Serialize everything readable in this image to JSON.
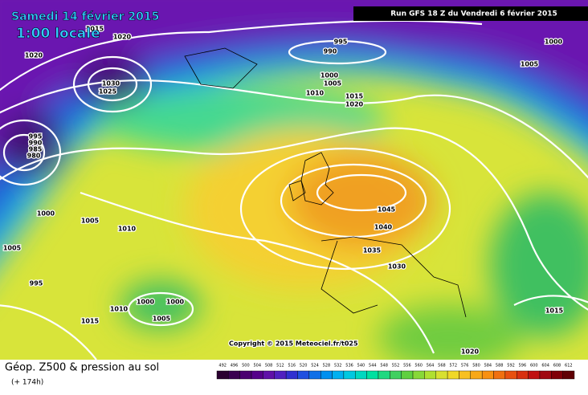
{
  "header": {
    "date": "Samedi 14 février 2015",
    "time": "1:00 locale",
    "run": "Run GFS 18 Z du Vendredi 6 février 2015"
  },
  "copyright": "Copyright © 2015 Meteociel.fr/t025",
  "footer": {
    "title": "Géop. Z500 & pression au sol",
    "lead": "(+ 174h)"
  },
  "isobar_labels": [
    1015,
    1020,
    1020,
    995,
    990,
    1000,
    1005,
    1030,
    1025,
    1000,
    1005,
    1010,
    1015,
    1020,
    995,
    990,
    985,
    980,
    1000,
    1005,
    1010,
    1005,
    1045,
    1040,
    1035,
    1030,
    995,
    1000,
    1000,
    1010,
    1005,
    1015,
    1015,
    1020
  ],
  "scale": {
    "ticks": [
      492,
      496,
      500,
      504,
      508,
      512,
      516,
      520,
      524,
      528,
      532,
      536,
      540,
      544,
      548,
      552,
      556,
      560,
      564,
      568,
      572,
      576,
      580,
      584,
      588,
      592,
      596,
      600,
      604,
      608,
      612
    ]
  }
}
